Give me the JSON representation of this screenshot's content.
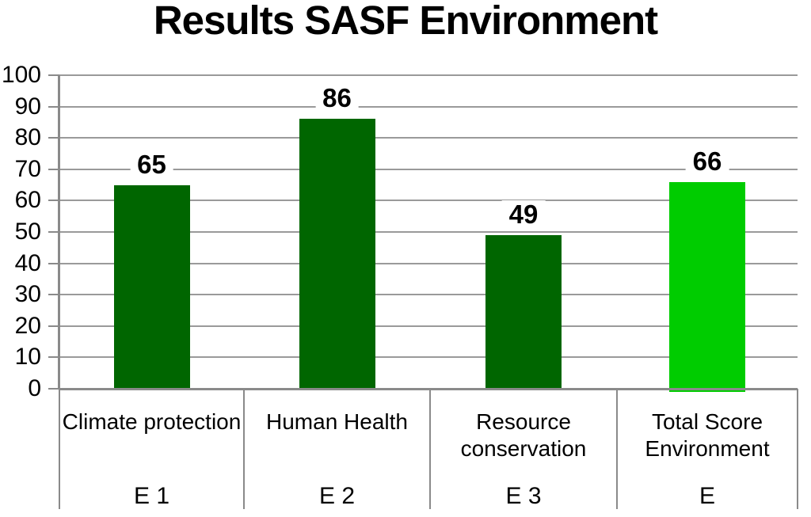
{
  "chart_data": {
    "type": "bar",
    "title": "Results SASF Environment",
    "categories": [
      "Climate protection",
      "Human Health",
      "Resource conservation",
      "Total Score Environment"
    ],
    "category_codes": [
      "E 1",
      "E 2",
      "E 3",
      "E"
    ],
    "values": [
      65,
      86,
      49,
      66
    ],
    "data_labels": [
      "65",
      "86",
      "49",
      "66"
    ],
    "bar_colors": [
      "#006600",
      "#006600",
      "#006600",
      "#00CC00"
    ],
    "yticks": [
      0,
      10,
      20,
      30,
      40,
      50,
      60,
      70,
      80,
      90,
      100
    ],
    "ylim": [
      0,
      100
    ],
    "xlabel": "",
    "ylabel": "",
    "grid": true,
    "legend": "none",
    "gridline_color": "#9A9A9A",
    "axis_color": "#8A8A8A",
    "text_color": "#000000",
    "background_color": "#FFFFFF"
  }
}
